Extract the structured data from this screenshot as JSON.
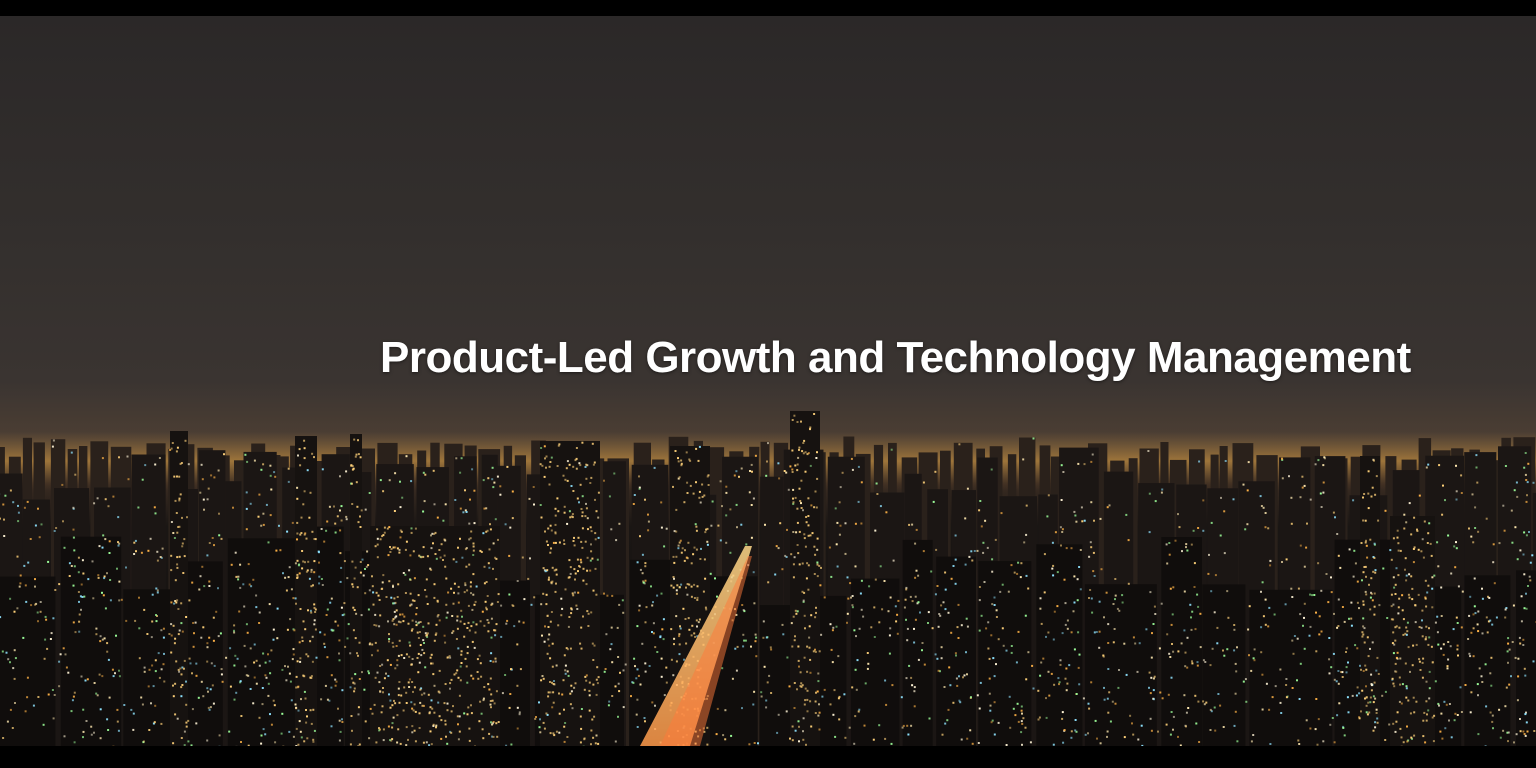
{
  "hero": {
    "title": "Product-Led Growth and Technology Management",
    "image_subject": "night-city-skyline",
    "colors": {
      "frame": "#000000",
      "sky": "#332f2d",
      "horizon_glow": "#6b5235",
      "city_lights": "#ffcf6b",
      "title_text": "#ffffff"
    }
  }
}
